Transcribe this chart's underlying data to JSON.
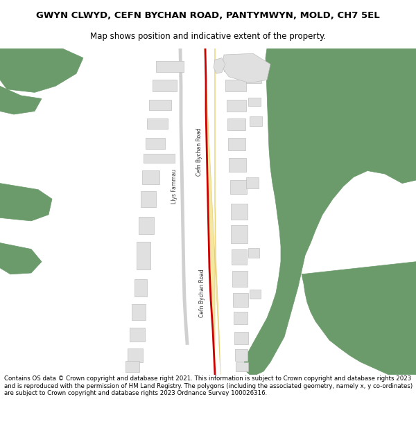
{
  "title_line1": "GWYN CLWYD, CEFN BYCHAN ROAD, PANTYMWYN, MOLD, CH7 5EL",
  "title_line2": "Map shows position and indicative extent of the property.",
  "footer": "Contains OS data © Crown copyright and database right 2021. This information is subject to Crown copyright and database rights 2023 and is reproduced with the permission of HM Land Registry. The polygons (including the associated geometry, namely x, y co-ordinates) are subject to Crown copyright and database rights 2023 Ordnance Survey 100026316.",
  "bg_color": "#ffffff",
  "green_color": "#6b9a6b",
  "road_yellow": "#f5e6a0",
  "road_red": "#cc0000",
  "building_fill": "#e0e0e0",
  "building_stroke": "#c0c0c0"
}
